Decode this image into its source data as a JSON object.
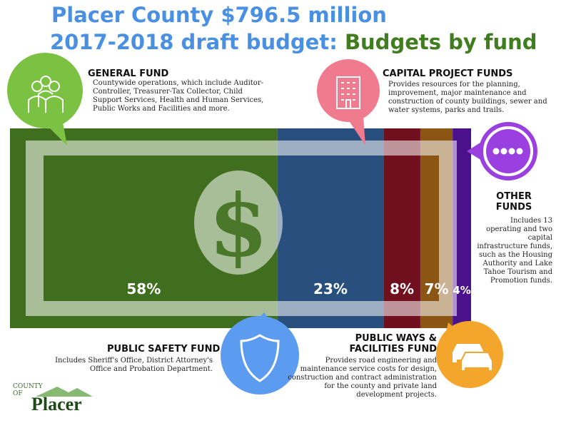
{
  "title": {
    "line1": "Placer County $796.5 million",
    "line2_prefix": "2017-2018 draft budget:",
    "line2_highlight": "Budgets by fund"
  },
  "colors": {
    "title_blue": "#4a90e2",
    "title_green": "#3f7d1e",
    "general": "#3f6f1e",
    "safety": "#284f7d",
    "capital": "#70101e",
    "ways": "#8b5614",
    "other": "#4a118a"
  },
  "chart_data": {
    "type": "bar",
    "subtype": "stacked-100-percent",
    "title": "Placer County $796.5 million 2017-2018 draft budget: Budgets by fund",
    "categories": [
      "General Fund",
      "Public Safety Fund",
      "Capital Project Funds",
      "Public Ways & Facilities Fund",
      "Other Funds"
    ],
    "values": [
      58,
      23,
      8,
      7,
      4
    ],
    "labels": [
      "58%",
      "23%",
      "8%",
      "7%",
      "4%"
    ],
    "unit": "%"
  },
  "funds": {
    "general": {
      "heading": "GENERAL FUND",
      "description": "Countywide operations, which include Auditor-Controller, Treasurer-Tax Collector, Child Support Services, Health and Human Services, Public Works and Facilities and more.",
      "icon": "people-icon"
    },
    "capital": {
      "heading": "CAPITAL PROJECT FUNDS",
      "description": "Provides resources for the planning, improvement, major maintenance and construction of county buildings, sewer and water systems, parks and trails.",
      "icon": "building-icon"
    },
    "other": {
      "heading_line1": "OTHER",
      "heading_line2": "FUNDS",
      "description": "Includes 13 operating and two capital infrastructure funds, such as the Housing Authority and Lake Tahoe Tourism and Promotion funds.",
      "icon": "more-dots-icon"
    },
    "safety": {
      "heading": "PUBLIC SAFETY FUND",
      "description": "Includes Sheriff's Office, District Attorney's Office and Probation Department.",
      "icon": "shield-icon"
    },
    "ways": {
      "heading_line1": "PUBLIC WAYS &",
      "heading_line2": "FACILITIES FUND",
      "description": "Provides road engineering and maintenance service costs for design, construction and contract administration for the county and private land development projects.",
      "icon": "cars-icon"
    }
  },
  "logo": {
    "small": "COUNTY OF",
    "name": "Placer"
  }
}
